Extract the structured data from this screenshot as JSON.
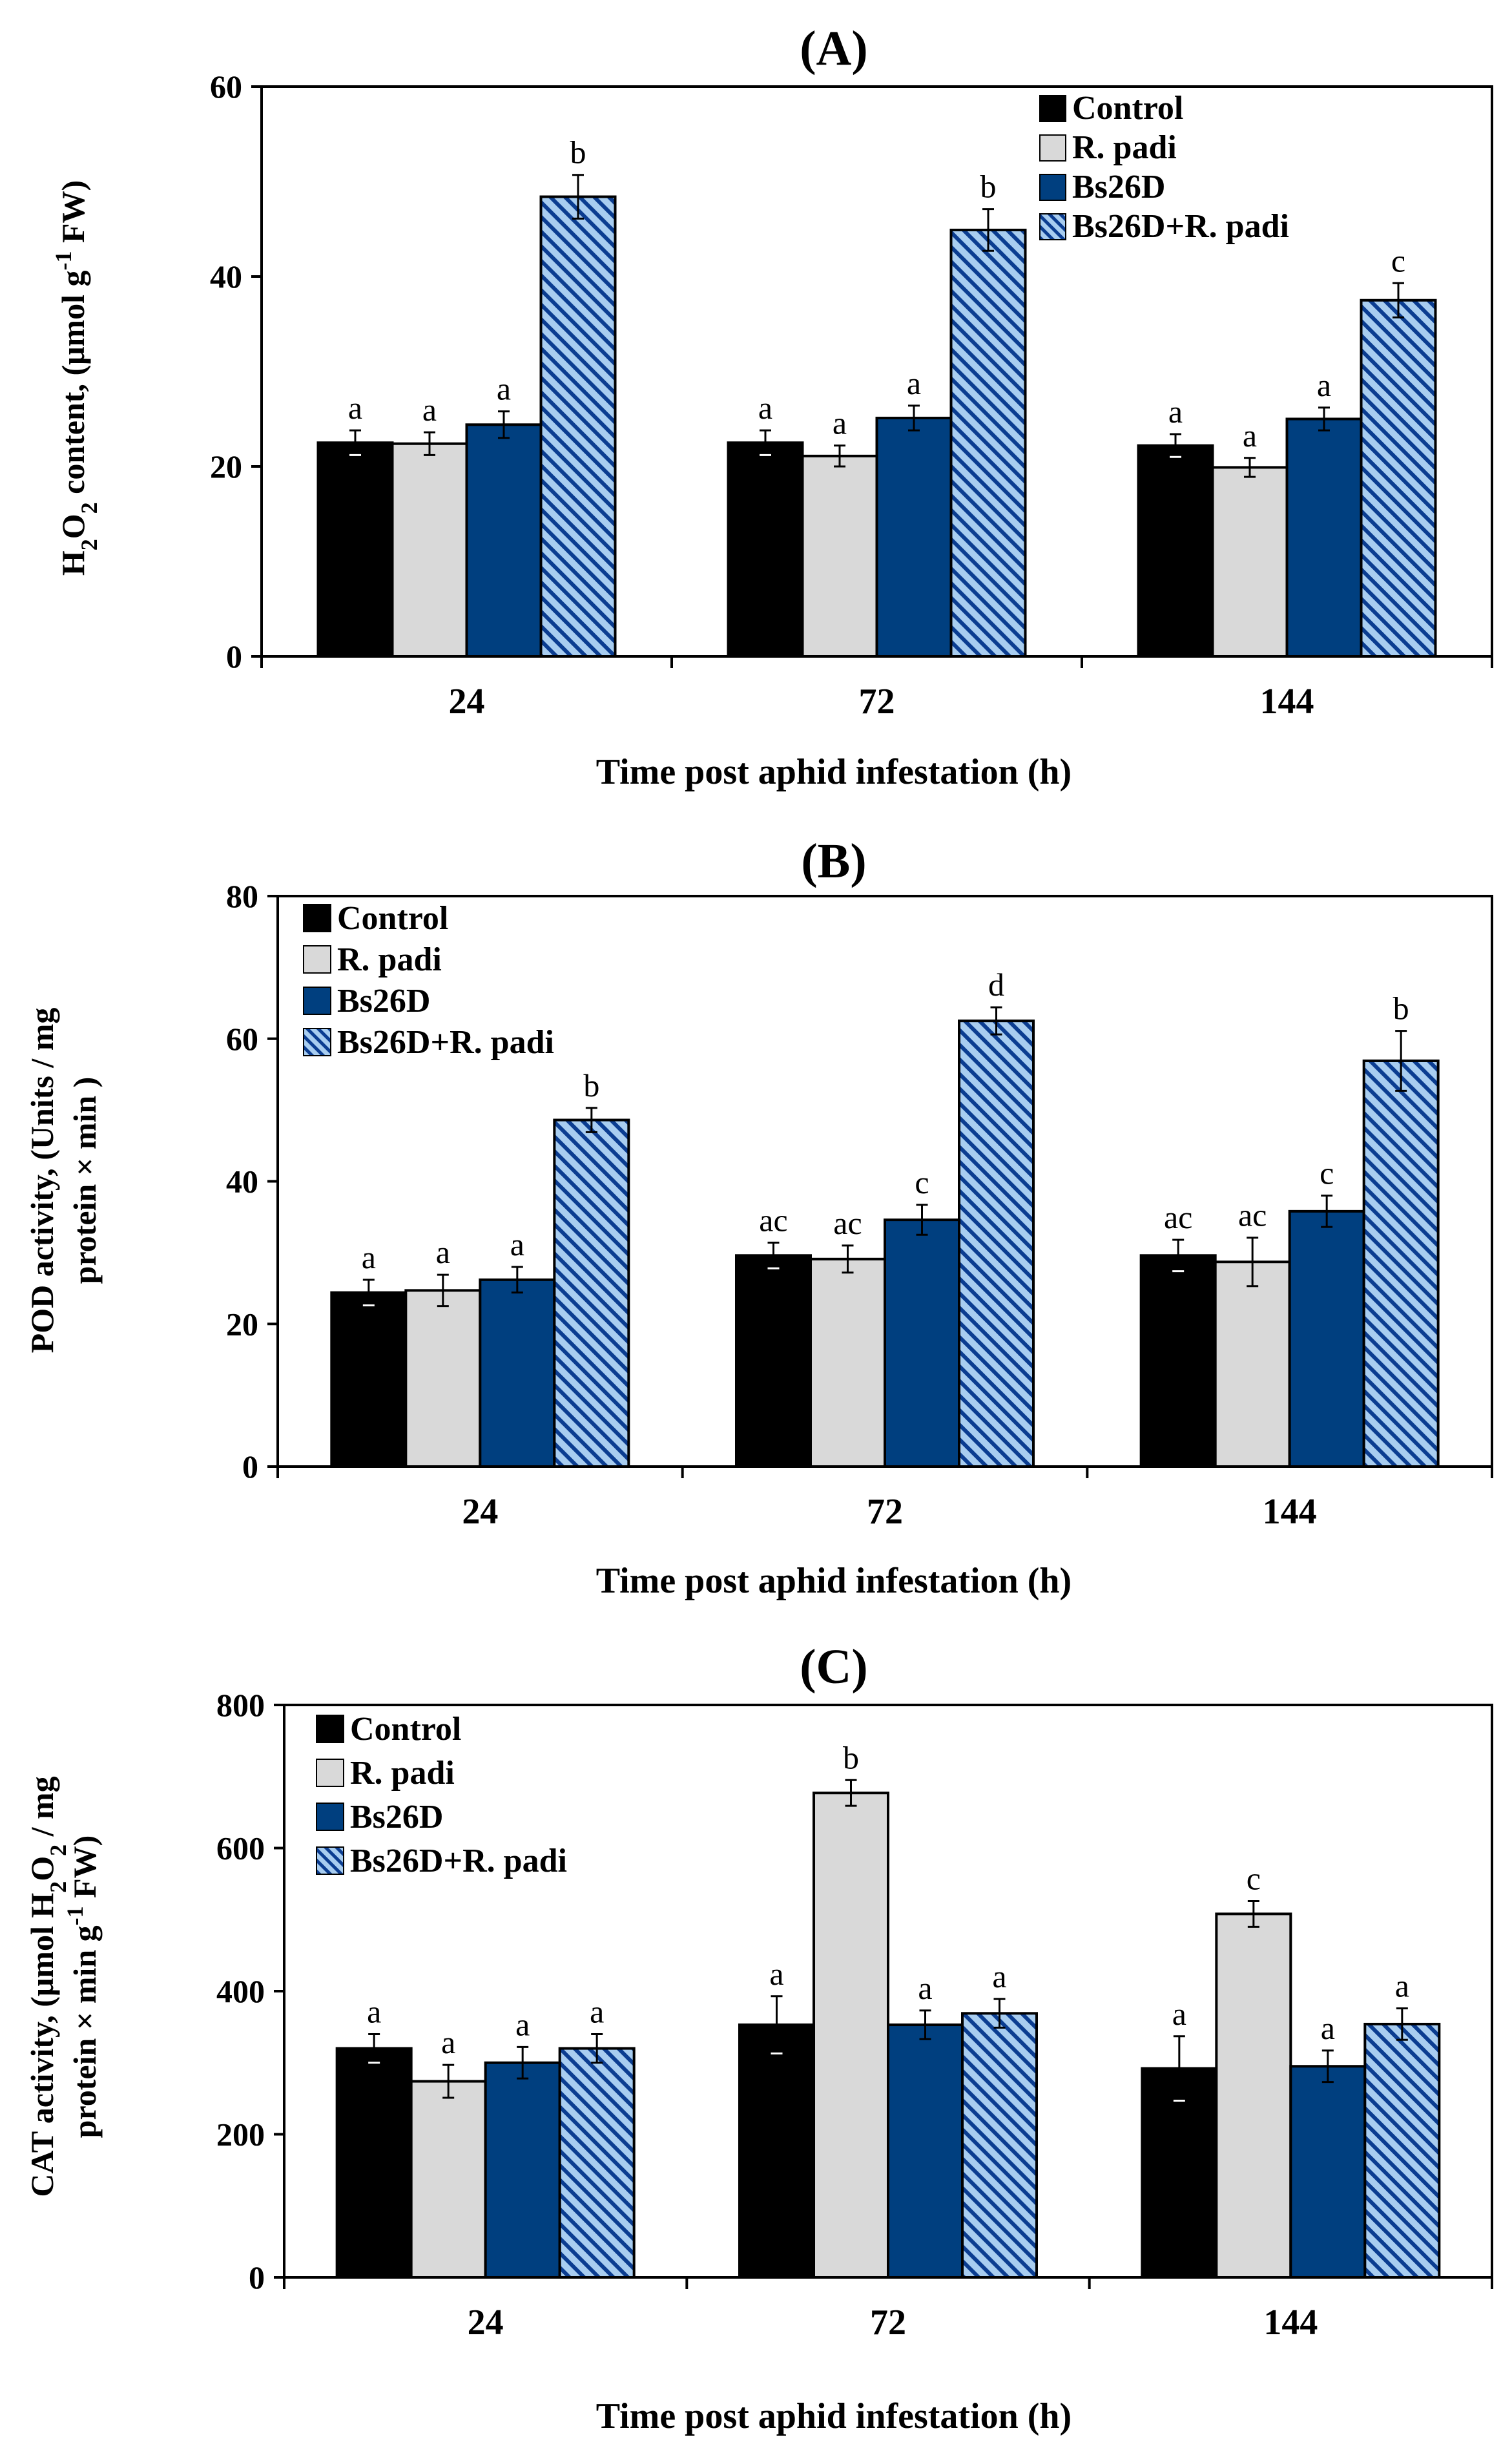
{
  "figure": {
    "series_styles": [
      {
        "name": "Control",
        "fill": "#000000",
        "pattern": "solid"
      },
      {
        "name": "R. padi",
        "fill": "#d9d9d9",
        "pattern": "solid"
      },
      {
        "name": "Bs26D",
        "fill": "#003f7f",
        "pattern": "solid"
      },
      {
        "name": "Bs26D+R. padi",
        "fill": "#a8cdf0",
        "pattern": "diagonal-stripe",
        "stripe_color": "#0b3d91"
      }
    ]
  },
  "chart_data": [
    {
      "type": "bar",
      "panel": "(A)",
      "title": "(A)",
      "ylabel": "H2O2 content, (μmol g-1 FW)",
      "ylabel_parts": {
        "pre": "H",
        "sub1": "2",
        "mid": "O",
        "sub2": "2",
        "post": " content, (μmol g",
        "sup": "-1",
        "end": " FW)"
      },
      "xlabel": "Time post aphid infestation (h)",
      "categories": [
        "24",
        "72",
        "144"
      ],
      "ylim": [
        0,
        60
      ],
      "yticks": [
        0,
        20,
        40,
        60
      ],
      "legend_position": "top-right",
      "series": [
        {
          "name": "Control",
          "values": [
            22.5,
            22.5,
            22.2
          ],
          "errors": [
            1.3,
            1.3,
            1.2
          ],
          "letters": [
            "a",
            "a",
            "a"
          ]
        },
        {
          "name": "R. padi",
          "values": [
            22.4,
            21.1,
            19.9
          ],
          "errors": [
            1.2,
            1.1,
            1.0
          ],
          "letters": [
            "a",
            "a",
            "a"
          ]
        },
        {
          "name": "Bs26D",
          "values": [
            24.4,
            25.1,
            25.0
          ],
          "errors": [
            1.4,
            1.3,
            1.2
          ],
          "letters": [
            "a",
            "a",
            "a"
          ]
        },
        {
          "name": "Bs26D+R. padi",
          "values": [
            48.4,
            44.9,
            37.5
          ],
          "errors": [
            2.3,
            2.2,
            1.8
          ],
          "letters": [
            "b",
            "b",
            "c"
          ]
        }
      ]
    },
    {
      "type": "bar",
      "panel": "(B)",
      "title": "(B)",
      "ylabel_line1": "POD activity, (Units / mg",
      "ylabel_line2": "protein × min )",
      "xlabel": "Time post aphid infestation (h)",
      "categories": [
        "24",
        "72",
        "144"
      ],
      "ylim": [
        0,
        80
      ],
      "yticks": [
        0,
        20,
        40,
        60,
        80
      ],
      "legend_position": "top-left",
      "series": [
        {
          "name": "Control",
          "values": [
            24.4,
            29.6,
            29.6
          ],
          "errors": [
            1.8,
            1.8,
            2.2
          ],
          "letters": [
            "a",
            "ac",
            "ac"
          ]
        },
        {
          "name": "R. padi",
          "values": [
            24.7,
            29.1,
            28.7
          ],
          "errors": [
            2.2,
            1.9,
            3.4
          ],
          "letters": [
            "a",
            "ac",
            "ac"
          ]
        },
        {
          "name": "Bs26D",
          "values": [
            26.2,
            34.6,
            35.8
          ],
          "errors": [
            1.8,
            2.1,
            2.2
          ],
          "letters": [
            "a",
            "c",
            "c"
          ]
        },
        {
          "name": "Bs26D+R. padi",
          "values": [
            48.6,
            62.5,
            56.9
          ],
          "errors": [
            1.7,
            1.9,
            4.2
          ],
          "letters": [
            "b",
            "d",
            "b"
          ]
        }
      ]
    },
    {
      "type": "bar",
      "panel": "(C)",
      "title": "(C)",
      "ylabel_line1": "CAT activity, (μmol H2O2 / mg",
      "ylabel_line1_parts": {
        "pre": "CAT activity, (μmol H",
        "sub1": "2",
        "mid": "O",
        "sub2": "2",
        "post": " / mg"
      },
      "ylabel_line2": "protein × min g-1 FW)",
      "ylabel_line2_parts": {
        "pre": "protein × min g",
        "sup": "-1",
        "post": " FW)"
      },
      "xlabel": "Time post aphid infestation (h)",
      "categories": [
        "24",
        "72",
        "144"
      ],
      "ylim": [
        0,
        800
      ],
      "yticks": [
        0,
        200,
        400,
        600,
        800
      ],
      "legend_position": "top-left",
      "series": [
        {
          "name": "Control",
          "values": [
            320,
            353,
            292
          ],
          "errors": [
            20,
            40,
            45
          ],
          "letters": [
            "a",
            "a",
            "a"
          ]
        },
        {
          "name": "R. padi",
          "values": [
            274,
            677,
            508
          ],
          "errors": [
            23,
            18,
            18
          ],
          "letters": [
            "a",
            "b",
            "c"
          ]
        },
        {
          "name": "Bs26D",
          "values": [
            300,
            353,
            295
          ],
          "errors": [
            22,
            20,
            22
          ],
          "letters": [
            "a",
            "a",
            "a"
          ]
        },
        {
          "name": "Bs26D+R. padi",
          "values": [
            320,
            369,
            354
          ],
          "errors": [
            20,
            20,
            22
          ],
          "letters": [
            "a",
            "a",
            "a"
          ]
        }
      ]
    }
  ]
}
